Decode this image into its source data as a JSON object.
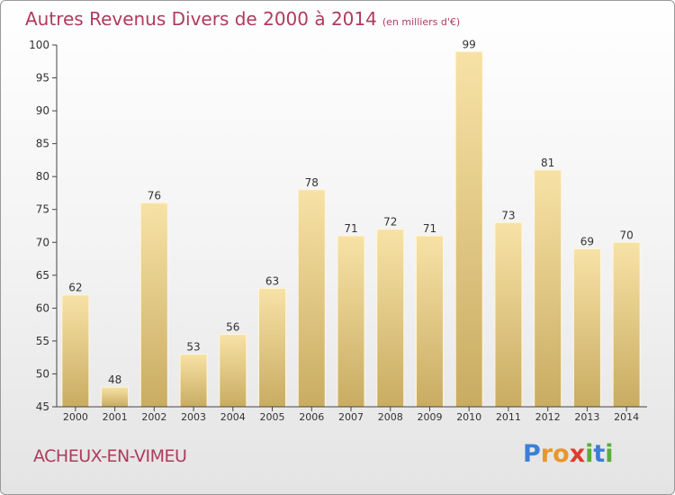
{
  "title": "Autres Revenus Divers de 2000 à 2014",
  "subtitle": "(en milliers d'€)",
  "commune": "ACHEUX-EN-VIMEU",
  "logo": {
    "letters": [
      "P",
      "r",
      "o",
      "x",
      "i",
      "t",
      "i"
    ],
    "colors": [
      "#3c7fd4",
      "#e8962b",
      "#e8962b",
      "#e03a2f",
      "#59ad3a",
      "#3c7fd4",
      "#59ad3a"
    ]
  },
  "colors": {
    "bar_top": "#f7e2a6",
    "bar_bottom": "#c9ac62",
    "text": "#b03a5e"
  },
  "chart_data": {
    "type": "bar",
    "title": "Autres Revenus Divers de 2000 à 2014",
    "xlabel": "",
    "ylabel": "",
    "categories": [
      "2000",
      "2001",
      "2002",
      "2003",
      "2004",
      "2005",
      "2006",
      "2007",
      "2008",
      "2009",
      "2010",
      "2011",
      "2012",
      "2013",
      "2014"
    ],
    "values": [
      62,
      48,
      76,
      53,
      56,
      63,
      78,
      71,
      72,
      71,
      99,
      73,
      81,
      69,
      70
    ],
    "ylim": [
      45,
      100
    ],
    "yticks": [
      45,
      50,
      55,
      60,
      65,
      70,
      75,
      80,
      85,
      90,
      95,
      100
    ],
    "grid": false,
    "legend": "none"
  }
}
